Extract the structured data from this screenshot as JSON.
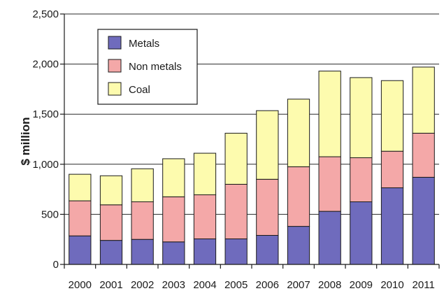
{
  "chart_data": {
    "type": "bar",
    "stacked": true,
    "title": "",
    "xlabel": "",
    "ylabel": "$ million",
    "ylim": [
      0,
      2500
    ],
    "yticks": [
      0,
      500,
      1000,
      1500,
      2000,
      2500
    ],
    "ytick_labels": [
      "0",
      "500",
      "1,000",
      "1,500",
      "2,000",
      "2,500"
    ],
    "grid": true,
    "legend_position": "top-left",
    "categories": [
      "2000",
      "2001",
      "2002",
      "2003",
      "2004",
      "2005",
      "2006",
      "2007",
      "2008",
      "2009",
      "2010",
      "2011"
    ],
    "series": [
      {
        "name": "Metals",
        "color": "#6f6bbd",
        "values": [
          285,
          240,
          250,
          225,
          255,
          255,
          290,
          380,
          530,
          625,
          765,
          870
        ]
      },
      {
        "name": "Non metals",
        "color": "#f4a8a8",
        "values": [
          350,
          355,
          375,
          450,
          440,
          545,
          560,
          595,
          545,
          440,
          365,
          440
        ]
      },
      {
        "name": "Coal",
        "color": "#fdfbae",
        "values": [
          265,
          290,
          330,
          380,
          415,
          510,
          685,
          675,
          855,
          800,
          705,
          660
        ]
      }
    ]
  }
}
